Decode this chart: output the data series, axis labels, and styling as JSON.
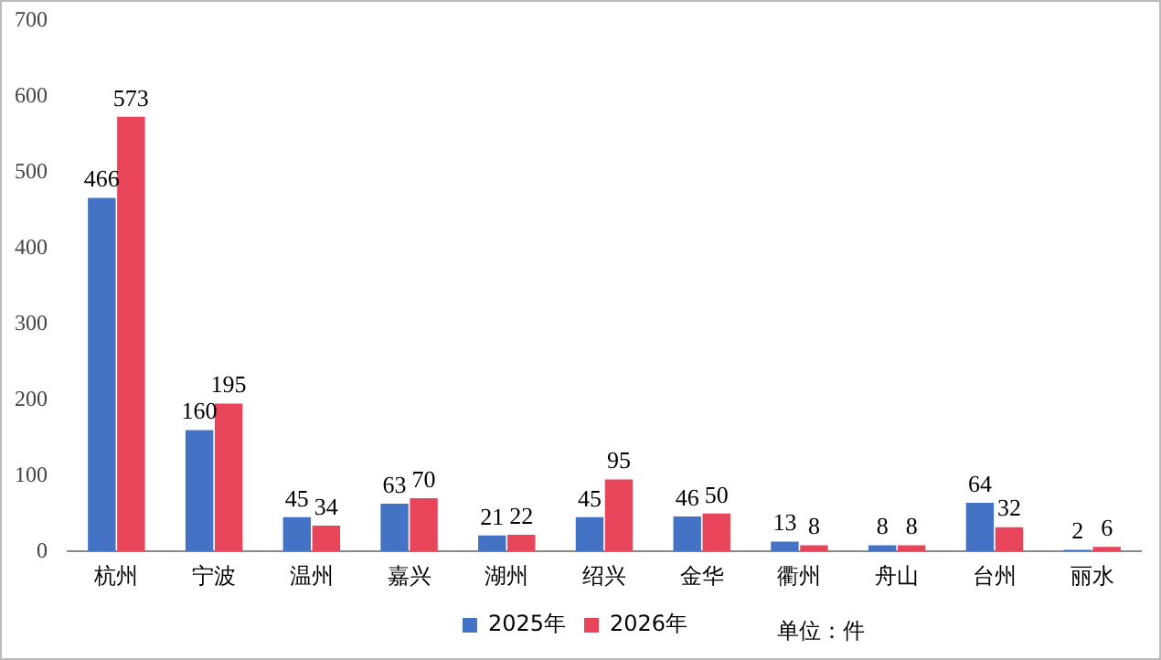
{
  "chart_data": {
    "type": "bar",
    "categories": [
      "杭州",
      "宁波",
      "温州",
      "嘉兴",
      "湖州",
      "绍兴",
      "金华",
      "衢州",
      "舟山",
      "台州",
      "丽水"
    ],
    "series": [
      {
        "name": "2025年",
        "color": "#4472c4",
        "values": [
          466,
          160,
          45,
          63,
          21,
          45,
          46,
          13,
          8,
          64,
          2
        ]
      },
      {
        "name": "2026年",
        "color": "#e8445a",
        "values": [
          573,
          195,
          34,
          70,
          22,
          95,
          50,
          8,
          8,
          32,
          6
        ]
      }
    ],
    "ylim": [
      0,
      700
    ],
    "yticks": [
      0,
      100,
      200,
      300,
      400,
      500,
      600,
      700
    ],
    "grid": false,
    "legend": "bottom",
    "data_labels": true,
    "annotations": [
      "单位：件"
    ]
  }
}
